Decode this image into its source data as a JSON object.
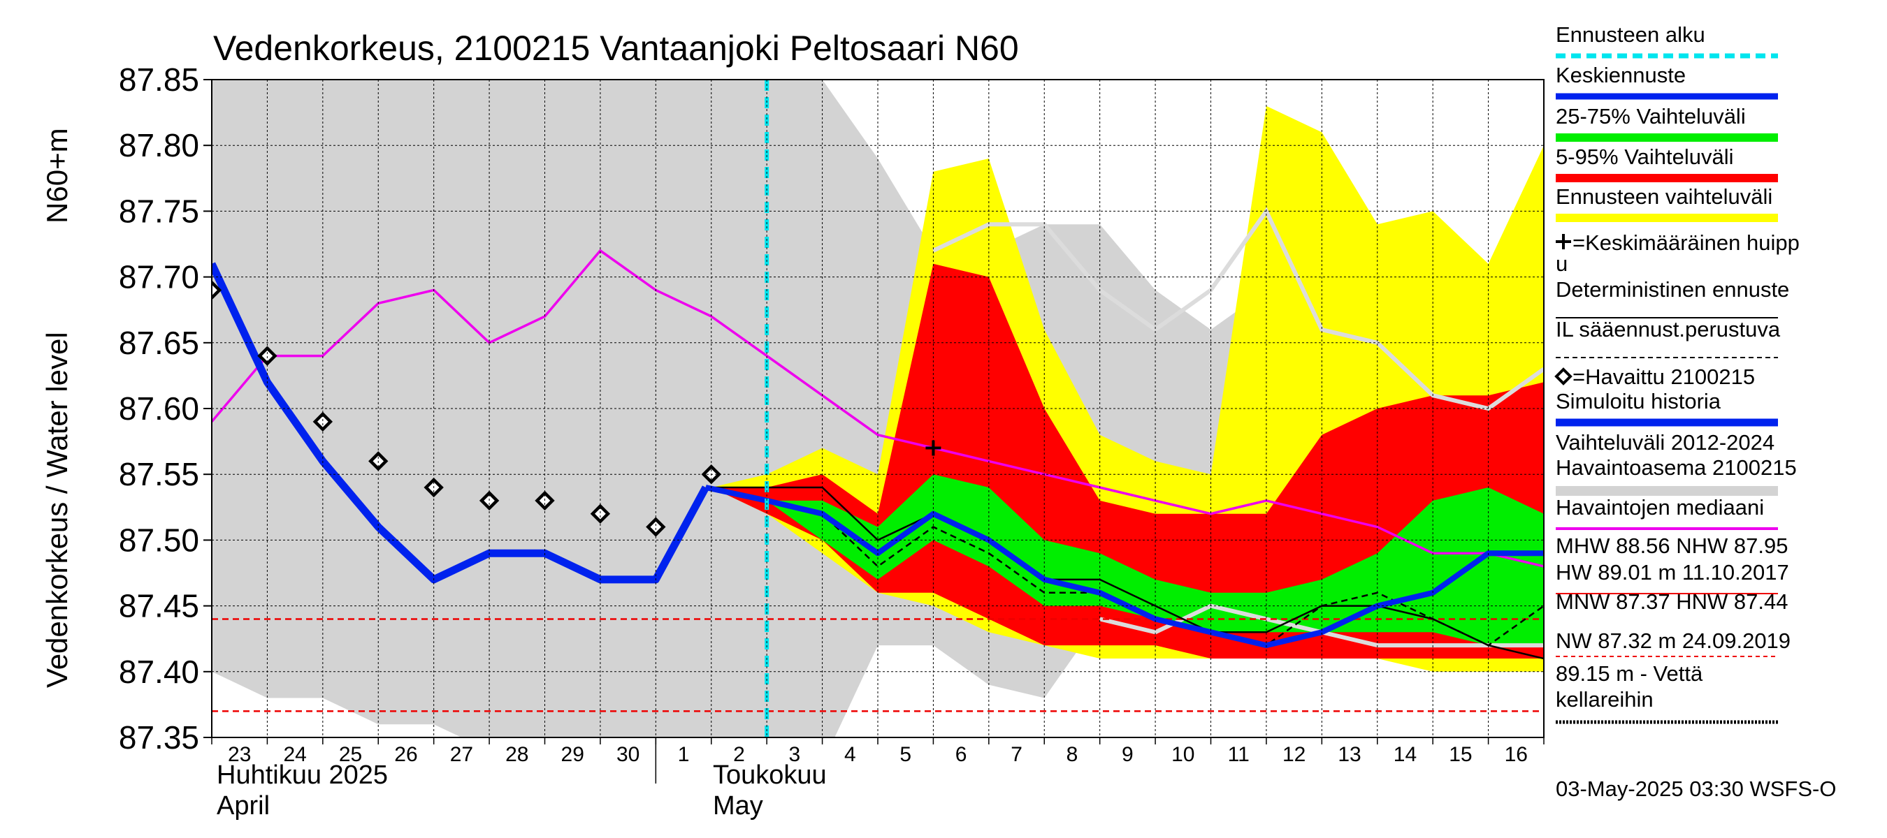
{
  "chart_data": {
    "type": "line",
    "title": "Vedenkorkeus, 2100215 Vantaanjoki Peltosaari N60",
    "ylabel_line1": "Vedenkorkeus / Water level",
    "ylabel_line2": "N60+m",
    "ylim": [
      87.35,
      87.85
    ],
    "yticks": [
      "87.35",
      "87.40",
      "87.45",
      "87.50",
      "87.55",
      "87.60",
      "87.65",
      "87.70",
      "87.75",
      "87.80",
      "87.85"
    ],
    "x_range_days": [
      0,
      24
    ],
    "xticks": [
      "23",
      "24",
      "25",
      "26",
      "27",
      "28",
      "29",
      "30",
      "1",
      "2",
      "3",
      "4",
      "5",
      "6",
      "7",
      "8",
      "9",
      "10",
      "11",
      "12",
      "13",
      "14",
      "15",
      "16"
    ],
    "month_labels": [
      {
        "fi": "Huhtikuu  2025",
        "en": "April"
      },
      {
        "fi": "Toukokuu",
        "en": "May"
      }
    ],
    "forecast_start_day": 10.0,
    "grid": true,
    "legend_position": "right",
    "timestamp": "03-May-2025 03:30 WSFS-O",
    "bands": {
      "history_range": {
        "x": [
          0,
          1,
          2,
          3,
          4,
          5,
          6,
          7,
          8,
          9,
          10,
          11,
          12,
          13,
          14,
          15,
          16,
          17,
          18,
          19,
          20,
          21,
          22,
          23,
          24
        ],
        "upper": [
          87.85,
          87.85,
          87.85,
          87.85,
          87.85,
          87.85,
          87.85,
          87.85,
          87.85,
          87.85,
          87.85,
          87.85,
          87.79,
          87.72,
          87.72,
          87.74,
          87.74,
          87.69,
          87.66,
          87.69,
          87.75,
          87.68,
          87.65,
          87.61,
          87.63
        ],
        "lower": [
          87.4,
          87.38,
          87.38,
          87.36,
          87.36,
          87.34,
          87.33,
          87.32,
          87.31,
          87.3,
          87.29,
          87.33,
          87.42,
          87.42,
          87.39,
          87.38,
          87.44,
          87.43,
          87.45,
          87.44,
          87.43,
          87.42,
          87.42,
          87.42,
          87.42
        ]
      },
      "forecast_range": {
        "x": [
          9,
          10,
          11,
          12,
          13,
          14,
          15,
          16,
          17,
          18,
          19,
          20,
          21,
          22,
          23,
          24
        ],
        "upper": [
          87.54,
          87.55,
          87.57,
          87.55,
          87.78,
          87.79,
          87.66,
          87.58,
          87.56,
          87.55,
          87.83,
          87.81,
          87.74,
          87.75,
          87.71,
          87.8
        ],
        "lower": [
          87.54,
          87.52,
          87.49,
          87.46,
          87.45,
          87.43,
          87.42,
          87.41,
          87.41,
          87.41,
          87.41,
          87.41,
          87.41,
          87.4,
          87.4,
          87.4
        ]
      },
      "p5_95": {
        "x": [
          9,
          10,
          11,
          12,
          13,
          14,
          15,
          16,
          17,
          18,
          19,
          20,
          21,
          22,
          23,
          24
        ],
        "upper": [
          87.54,
          87.54,
          87.55,
          87.52,
          87.71,
          87.7,
          87.6,
          87.53,
          87.52,
          87.52,
          87.52,
          87.58,
          87.6,
          87.61,
          87.61,
          87.62
        ],
        "lower": [
          87.54,
          87.52,
          87.5,
          87.46,
          87.46,
          87.44,
          87.42,
          87.42,
          87.42,
          87.41,
          87.41,
          87.41,
          87.41,
          87.41,
          87.41,
          87.41
        ]
      },
      "p25_75": {
        "x": [
          9,
          10,
          11,
          12,
          13,
          14,
          15,
          16,
          17,
          18,
          19,
          20,
          21,
          22,
          23,
          24
        ],
        "upper": [
          87.54,
          87.53,
          87.53,
          87.51,
          87.55,
          87.54,
          87.5,
          87.49,
          87.47,
          87.46,
          87.46,
          87.47,
          87.49,
          87.53,
          87.54,
          87.52
        ],
        "lower": [
          87.54,
          87.53,
          87.5,
          87.47,
          87.5,
          87.48,
          87.45,
          87.45,
          87.44,
          87.43,
          87.43,
          87.43,
          87.43,
          87.43,
          87.42,
          87.42
        ]
      }
    },
    "series": [
      {
        "key": "hist_median",
        "x": [
          0,
          1,
          2,
          3,
          4,
          5,
          6,
          7,
          8,
          9,
          10,
          11,
          12,
          13,
          14,
          15,
          16,
          17,
          18,
          19,
          20,
          21,
          22,
          23,
          24
        ],
        "values": [
          87.59,
          87.64,
          87.64,
          87.68,
          87.69,
          87.65,
          87.67,
          87.72,
          87.69,
          87.67,
          87.64,
          87.61,
          87.58,
          87.57,
          87.56,
          87.55,
          87.54,
          87.53,
          87.52,
          87.53,
          87.52,
          87.51,
          87.49,
          87.49,
          87.48
        ]
      },
      {
        "key": "simulated_history",
        "x": [
          0,
          1,
          2,
          3,
          4,
          5,
          6,
          7,
          8,
          8.9
        ],
        "values": [
          87.71,
          87.62,
          87.56,
          87.51,
          87.47,
          87.49,
          87.49,
          87.47,
          87.47,
          87.54
        ]
      },
      {
        "key": "mean_forecast",
        "x": [
          8.9,
          10,
          11,
          12,
          13,
          14,
          15,
          16,
          17,
          18,
          19,
          20,
          21,
          22,
          23,
          24
        ],
        "values": [
          87.54,
          87.53,
          87.52,
          87.49,
          87.52,
          87.5,
          87.47,
          87.46,
          87.44,
          87.43,
          87.42,
          87.43,
          87.45,
          87.46,
          87.49,
          87.49
        ]
      },
      {
        "key": "deterministic",
        "x": [
          8.9,
          10,
          11,
          12,
          13,
          14,
          15,
          16,
          17,
          18,
          19,
          20,
          21,
          22,
          23,
          24
        ],
        "values": [
          87.54,
          87.54,
          87.54,
          87.5,
          87.52,
          87.5,
          87.47,
          87.47,
          87.45,
          87.43,
          87.43,
          87.45,
          87.45,
          87.44,
          87.42,
          87.41
        ]
      },
      {
        "key": "il_weather",
        "x": [
          8.9,
          10,
          11,
          12,
          13,
          14,
          15,
          16,
          17,
          18,
          19,
          20,
          21,
          22,
          23,
          24
        ],
        "values": [
          87.54,
          87.53,
          87.52,
          87.48,
          87.51,
          87.49,
          87.46,
          87.46,
          87.44,
          87.43,
          87.42,
          87.45,
          87.46,
          87.44,
          87.42,
          87.45
        ]
      },
      {
        "key": "yearly_mean_gray",
        "x": [
          16,
          17,
          18,
          19,
          20,
          21,
          22,
          23,
          24
        ],
        "values": [
          87.44,
          87.43,
          87.45,
          87.44,
          87.43,
          87.42,
          87.42,
          87.42,
          87.42
        ]
      },
      {
        "key": "yearly_mean_gray_top",
        "x": [
          13,
          14,
          15,
          16,
          17,
          18,
          19,
          20,
          21,
          22,
          23,
          24
        ],
        "values": [
          87.72,
          87.74,
          87.74,
          87.69,
          87.66,
          87.69,
          87.75,
          87.66,
          87.65,
          87.61,
          87.6,
          87.63
        ]
      }
    ],
    "observed": {
      "x": [
        0,
        1,
        2,
        3,
        4,
        5,
        6,
        7,
        8,
        9
      ],
      "values": [
        87.69,
        87.64,
        87.59,
        87.56,
        87.54,
        87.53,
        87.53,
        87.52,
        87.51,
        87.55
      ]
    },
    "mean_peak": {
      "x": 13,
      "value": 87.57
    },
    "ref_lines": [
      {
        "value": 87.44
      },
      {
        "value": 87.37
      }
    ],
    "colors": {
      "history_range": "#d3d3d3",
      "forecast_range": "#ffff00",
      "p5_95": "#ff0000",
      "p25_75": "#00ee00",
      "mean": "#0022ee",
      "median": "#ee00ee",
      "forecast_start": "#00e5ee",
      "ref": "#ee0000",
      "gray_line": "#dcdcdc"
    },
    "legend": [
      {
        "key": "forecast_start",
        "label": "Ennusteen alku"
      },
      {
        "key": "mean",
        "label": "Keskiennuste"
      },
      {
        "key": "p25_75",
        "label": "25-75% Vaihteluväli"
      },
      {
        "key": "p5_95",
        "label": "5-95% Vaihteluväli"
      },
      {
        "key": "forecast_range",
        "label": "Ennusteen vaihteluväli"
      },
      {
        "key": "mean_peak",
        "label_l1": "=Keskimääräinen huipp",
        "label_l2": "u"
      },
      {
        "key": "deterministic",
        "label": "Deterministinen ennuste"
      },
      {
        "key": "il",
        "label": "IL sääennust.perustuva"
      },
      {
        "key": "observed",
        "label": "=Havaittu 2100215"
      },
      {
        "key": "simulated",
        "label": "Simuloitu historia"
      },
      {
        "key": "range_hist",
        "label_l1": "Vaihteluväli 2012-2024",
        "label_l2": " Havaintoasema 2100215"
      },
      {
        "key": "median",
        "label": "Havaintojen mediaani"
      },
      {
        "key": "stats1",
        "label_l1": "MHW  88.56 NHW  87.95",
        "label_l2": "HW  89.01 m 11.10.2017"
      },
      {
        "key": "stats2",
        "label_l1": "MNW  87.37 HNW  87.44",
        "label_l2": "NW  87.32 m 24.09.2019"
      },
      {
        "key": "cellar",
        "label_l1": "89.15 m - Vettä",
        "label_l2": " kellareihin"
      }
    ]
  }
}
